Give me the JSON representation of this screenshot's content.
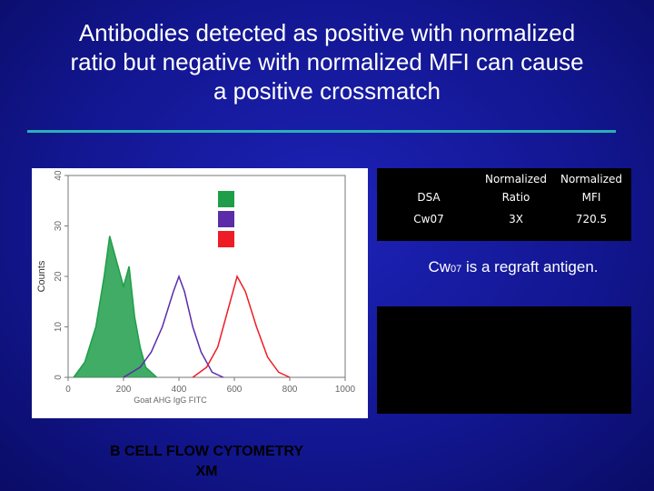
{
  "title_lines": [
    "Antibodies detected as positive with normalized",
    "ratio but negative with normalized MFI can cause",
    "a positive crossmatch"
  ],
  "table": {
    "header": [
      "DSA",
      "Normalized Ratio",
      "Normalized MFI"
    ],
    "rows": [
      [
        "Cw07",
        "3X",
        "720.5"
      ]
    ]
  },
  "note": {
    "prefix": "Cw",
    "subscript": "07",
    "suffix": " is a regraft antigen."
  },
  "caption": "B CELL FLOW CYTOMETRY XM",
  "chart_data": {
    "type": "line",
    "xlabel": "Goat AHG IgG FITC",
    "ylabel": "Counts",
    "xlim": [
      0,
      1000
    ],
    "xticks": [
      0,
      200,
      400,
      600,
      800,
      1000
    ],
    "ylim": [
      0,
      40
    ],
    "yticks": [
      0,
      10,
      20,
      30,
      40
    ],
    "series": [
      {
        "color": "#1f9e4a",
        "x": [
          20,
          60,
          100,
          130,
          150,
          170,
          200,
          220,
          240,
          260,
          280,
          320
        ],
        "values": [
          0,
          3,
          10,
          20,
          28,
          24,
          18,
          22,
          12,
          6,
          2,
          0
        ]
      },
      {
        "color": "#5b2ca8",
        "x": [
          200,
          260,
          300,
          340,
          380,
          400,
          420,
          450,
          480,
          520,
          560
        ],
        "values": [
          0,
          2,
          5,
          10,
          17,
          20,
          17,
          10,
          5,
          1,
          0
        ]
      },
      {
        "color": "#ee1c25",
        "x": [
          450,
          500,
          540,
          580,
          610,
          640,
          680,
          720,
          760,
          800
        ],
        "values": [
          0,
          2,
          6,
          14,
          20,
          17,
          10,
          4,
          1,
          0
        ]
      }
    ]
  }
}
